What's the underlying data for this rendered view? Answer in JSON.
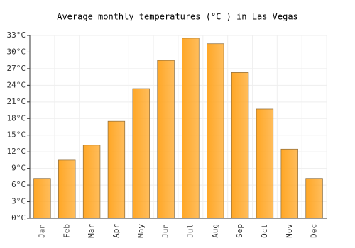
{
  "chart_data": {
    "type": "bar",
    "title": "Average monthly temperatures (°C ) in Las Vegas",
    "categories": [
      "Jan",
      "Feb",
      "Mar",
      "Apr",
      "May",
      "Jun",
      "Jul",
      "Aug",
      "Sep",
      "Oct",
      "Nov",
      "Dec"
    ],
    "values": [
      7.2,
      10.5,
      13.2,
      17.5,
      23.4,
      28.5,
      32.5,
      31.5,
      26.3,
      19.7,
      12.5,
      7.2
    ],
    "color": "#ffa726",
    "ylim": [
      0,
      33
    ],
    "yticks": [
      {
        "value": 0,
        "label": "0°C"
      },
      {
        "value": 3,
        "label": "3°C"
      },
      {
        "value": 6,
        "label": "6°C"
      },
      {
        "value": 9,
        "label": "9°C"
      },
      {
        "value": 12,
        "label": "12°C"
      },
      {
        "value": 15,
        "label": "15°C"
      },
      {
        "value": 18,
        "label": "18°C"
      },
      {
        "value": 21,
        "label": "21°C"
      },
      {
        "value": 24,
        "label": "24°C"
      },
      {
        "value": 27,
        "label": "27°C"
      },
      {
        "value": 30,
        "label": "30°C"
      },
      {
        "value": 33,
        "label": "33°C"
      }
    ],
    "grid": true
  }
}
